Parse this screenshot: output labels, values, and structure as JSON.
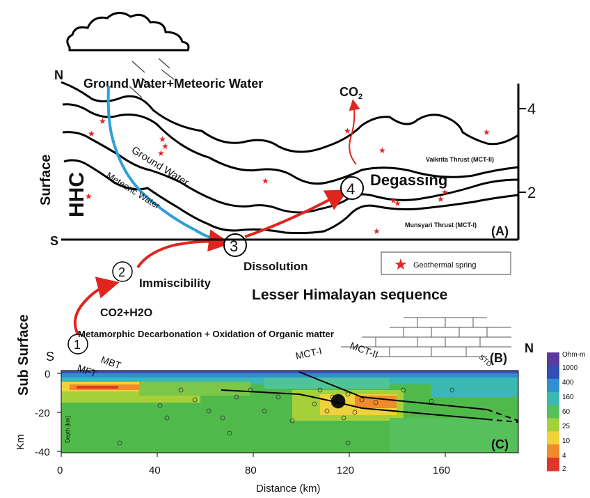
{
  "panel_a": {
    "north_label": "N",
    "south_label": "S",
    "side_label": "Surface",
    "hhc_label": "HHC",
    "water_label": "Ground Water+Meteoric Water",
    "ground_water_label": "Ground Water",
    "meteoric_water_label": "Meteoric Water",
    "co2_label": "CO",
    "co2_subscript": "2",
    "degassing_label": "Degassing",
    "vaikrita_label": "Vaikrita Thrust (MCT-II)",
    "munsyari_label": "Munsyari Thrust (MCT-I)",
    "panel_tag": "(A)",
    "right_tick_upper": "4",
    "right_tick_lower": "2",
    "step3_number": "3",
    "step4_number": "4",
    "dissolution_label": "Dissolution"
  },
  "panel_b": {
    "side_label": "Sub Surface",
    "south_label": "S",
    "north_label": "N",
    "legend_label": "Geothermal spring",
    "sequence_label": "Lesser Himalayan sequence",
    "step1_number": "1",
    "step1_label": "Metamorphic Decarbonation + Oxidation of Organic matter",
    "step2_number": "2",
    "immiscibility_label": "Immiscibility",
    "co2h2o_label": "CO2+H2O",
    "panel_tag": "(B)"
  },
  "panel_c": {
    "faults": [
      "MFT",
      "MBT",
      "MCT-I",
      "MCT-II",
      "STD"
    ],
    "y_ticks": [
      "0",
      "-20",
      "-40"
    ],
    "y_unit": "Km",
    "depth_label": "Depth [km]",
    "x_ticks": [
      "0",
      "40",
      "80",
      "120",
      "160"
    ],
    "x_label": "Distance (km)",
    "colorbar_title": "Ohm-m",
    "colorbar_ticks": [
      "1000",
      "400",
      "160",
      "60",
      "25",
      "10",
      "4",
      "2"
    ],
    "colorbar_colors": [
      "#5a3a9a",
      "#2f4fb5",
      "#2f8fd0",
      "#3bb8b2",
      "#56c05a",
      "#a6d03a",
      "#f0d23a",
      "#f08a2a",
      "#e0352a"
    ],
    "panel_tag": "(C)"
  }
}
